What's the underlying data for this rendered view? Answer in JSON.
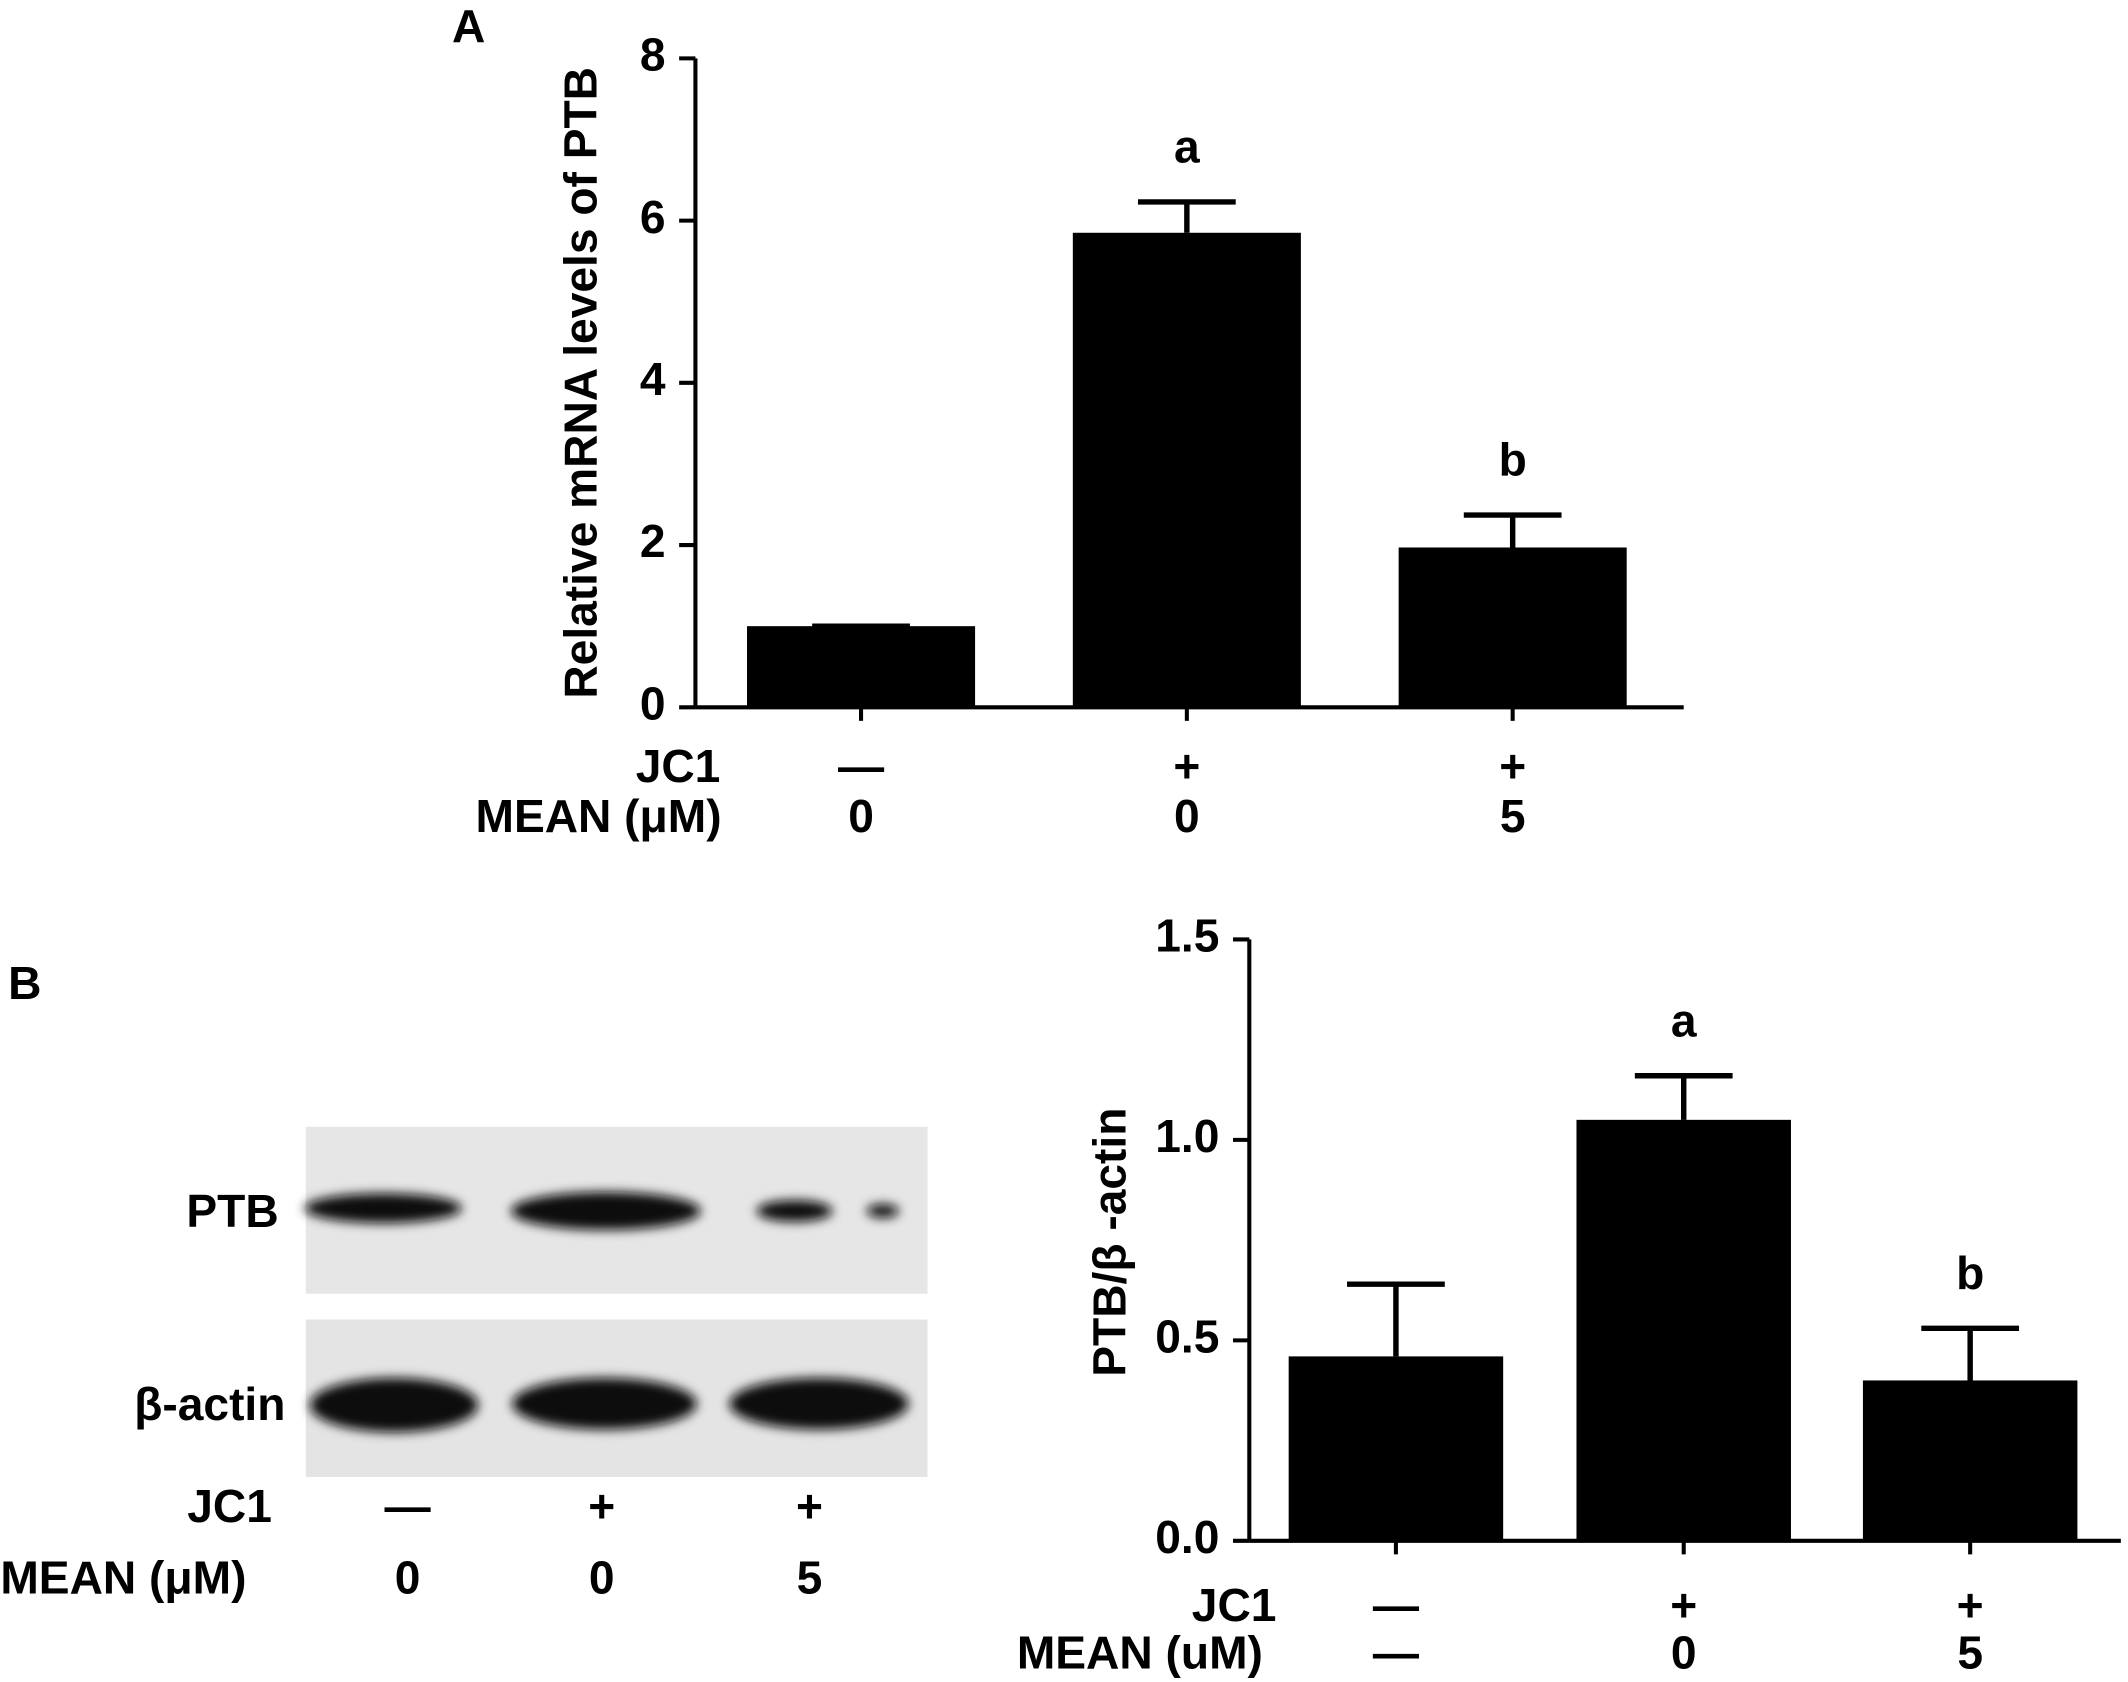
{
  "chart_data": [
    {
      "type": "bar",
      "panel": "A",
      "ylabel": "Relative mRNA levels of PTB",
      "values": [
        1,
        5.85,
        1.97
      ],
      "errors": [
        0,
        0.38,
        0.4
      ],
      "significance": [
        null,
        "a",
        "b"
      ],
      "color": "#000000",
      "ylim": [
        0,
        8
      ],
      "yticks": [
        0,
        2,
        4,
        6,
        8
      ],
      "condition_rows": [
        {
          "label": "JC1",
          "values": [
            "—",
            "+",
            "+"
          ]
        },
        {
          "label": "MEAN  (μM)",
          "values": [
            "0",
            "0",
            "5"
          ]
        }
      ]
    },
    {
      "type": "bar",
      "ylabel": "PTB/β -actin",
      "values": [
        0.46,
        1.05,
        0.4
      ],
      "errors": [
        0.18,
        0.11,
        0.13
      ],
      "significance": [
        null,
        "a",
        "b"
      ],
      "color": "#000000",
      "ylim": [
        0,
        1.5
      ],
      "yticks": [
        {
          "value": 0,
          "label": "0.0"
        },
        0.5,
        {
          "value": 1,
          "label": "1.0"
        },
        1.5
      ],
      "condition_rows": [
        {
          "label": "JC1",
          "values": [
            "—",
            "+",
            "+"
          ]
        },
        {
          "label": "MEAN (uM)",
          "values": [
            "—",
            "0",
            "5"
          ]
        }
      ]
    }
  ],
  "blot": {
    "panel": "B",
    "bands": [
      "PTB",
      "β-actin"
    ],
    "condition_rows": [
      {
        "label": "JC1",
        "values": [
          "—",
          "+",
          "+"
        ]
      },
      {
        "label": "MEAN (μM)",
        "values": [
          "0",
          "0",
          "5"
        ]
      }
    ]
  }
}
